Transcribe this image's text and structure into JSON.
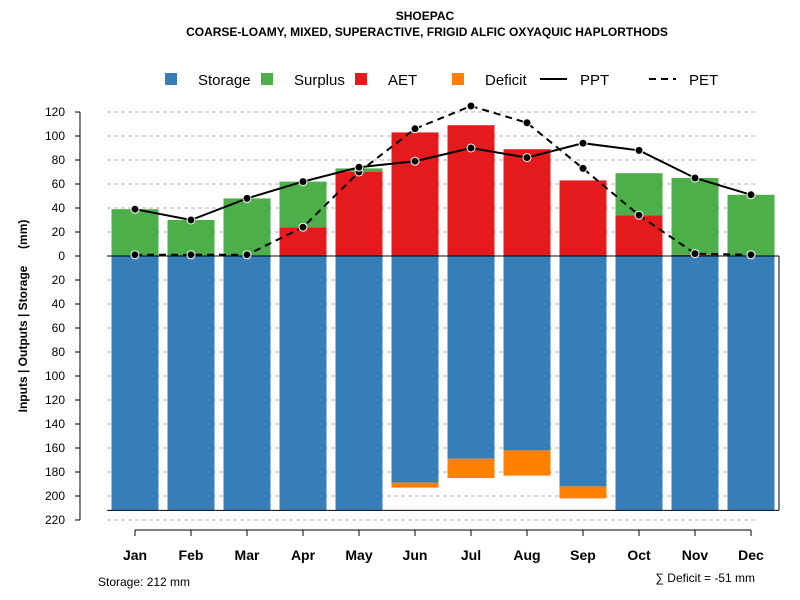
{
  "chart_data": {
    "type": "bar",
    "title": "SHOEPAC",
    "subtitle": "COARSE-LOAMY, MIXED, SUPERACTIVE, FRIGID ALFIC OXYAQUIC HAPLORTHODS",
    "ylabel": "Inputs | Outputs | Storage     (mm)",
    "xlabel": "",
    "ylim": [
      -220,
      130
    ],
    "y_ticks": [
      120,
      100,
      80,
      60,
      40,
      20,
      0,
      -20,
      -40,
      -60,
      -80,
      -100,
      -120,
      -140,
      -160,
      -180,
      -200,
      -220
    ],
    "y_tick_labels": [
      "120",
      "100",
      "80",
      "60",
      "40",
      "20",
      "0",
      "20",
      "40",
      "60",
      "80",
      "100",
      "120",
      "140",
      "160",
      "180",
      "200",
      "220"
    ],
    "categories": [
      "Jan",
      "Feb",
      "Mar",
      "Apr",
      "May",
      "Jun",
      "Jul",
      "Aug",
      "Sep",
      "Oct",
      "Nov",
      "Dec"
    ],
    "grid": true,
    "legend_position": "top",
    "legend": [
      {
        "name": "Storage",
        "kind": "box",
        "color": "#377EB8"
      },
      {
        "name": "Surplus",
        "kind": "box",
        "color": "#4DAF4A"
      },
      {
        "name": "AET",
        "kind": "box",
        "color": "#E41A1C"
      },
      {
        "name": "Deficit",
        "kind": "box",
        "color": "#FF7F00"
      },
      {
        "name": "PPT",
        "kind": "solid-line",
        "color": "#000000"
      },
      {
        "name": "PET",
        "kind": "dashed-line",
        "color": "#000000"
      }
    ],
    "series": [
      {
        "name": "Storage",
        "color": "#377EB8",
        "values": [
          212,
          212,
          212,
          212,
          212,
          189,
          169,
          162,
          192,
          212,
          212,
          212
        ]
      },
      {
        "name": "Surplus",
        "color": "#4DAF4A",
        "values": [
          39,
          30,
          48,
          38,
          3,
          0,
          0,
          0,
          0,
          35,
          64,
          51
        ]
      },
      {
        "name": "AET",
        "color": "#E41A1C",
        "values": [
          0,
          0,
          0,
          24,
          70,
          103,
          109,
          89,
          63,
          34,
          1,
          0
        ]
      },
      {
        "name": "Deficit",
        "color": "#FF7F00",
        "values": [
          0,
          0,
          0,
          0,
          0,
          4,
          16,
          21,
          10,
          0,
          0,
          0
        ]
      },
      {
        "name": "PPT",
        "color": "#000000",
        "style": "solid",
        "values": [
          39,
          30,
          48,
          62,
          74,
          79,
          90,
          82,
          94,
          88,
          65,
          51
        ]
      },
      {
        "name": "PET",
        "color": "#000000",
        "style": "dashed",
        "values": [
          1,
          1,
          1,
          24,
          70,
          106,
          125,
          111,
          73,
          34,
          2,
          1
        ]
      }
    ],
    "storage_note": "Storage: 212 mm",
    "deficit_note": "∑ Deficit = -51 mm"
  }
}
